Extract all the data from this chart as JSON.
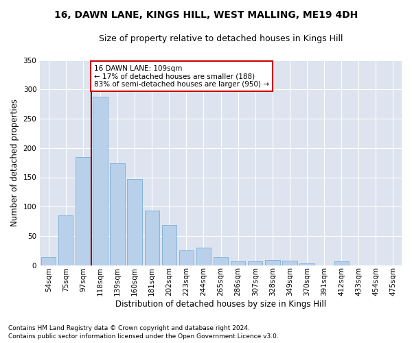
{
  "title": "16, DAWN LANE, KINGS HILL, WEST MALLING, ME19 4DH",
  "subtitle": "Size of property relative to detached houses in Kings Hill",
  "xlabel": "Distribution of detached houses by size in Kings Hill",
  "ylabel": "Number of detached properties",
  "categories": [
    "54sqm",
    "75sqm",
    "97sqm",
    "118sqm",
    "139sqm",
    "160sqm",
    "181sqm",
    "202sqm",
    "223sqm",
    "244sqm",
    "265sqm",
    "286sqm",
    "307sqm",
    "328sqm",
    "349sqm",
    "370sqm",
    "391sqm",
    "412sqm",
    "433sqm",
    "454sqm",
    "475sqm"
  ],
  "values": [
    13,
    85,
    185,
    288,
    174,
    147,
    93,
    68,
    25,
    30,
    14,
    6,
    7,
    9,
    8,
    3,
    0,
    6,
    0,
    0,
    0
  ],
  "bar_color": "#b8d0ea",
  "bar_edgecolor": "#7aafd4",
  "vline_color": "#8b0000",
  "vline_pos": 2.5,
  "annotation_text": "16 DAWN LANE: 109sqm\n← 17% of detached houses are smaller (188)\n83% of semi-detached houses are larger (950) →",
  "annotation_box_color": "white",
  "annotation_box_edgecolor": "#cc0000",
  "annotation_fontsize": 7.5,
  "ylim": [
    0,
    350
  ],
  "yticks": [
    0,
    50,
    100,
    150,
    200,
    250,
    300,
    350
  ],
  "background_color": "#dde4f0",
  "grid_color": "white",
  "footnote": "Contains HM Land Registry data © Crown copyright and database right 2024.\nContains public sector information licensed under the Open Government Licence v3.0.",
  "title_fontsize": 10,
  "subtitle_fontsize": 9,
  "xlabel_fontsize": 8.5,
  "ylabel_fontsize": 8.5,
  "tick_fontsize": 7.5,
  "footnote_fontsize": 6.5
}
